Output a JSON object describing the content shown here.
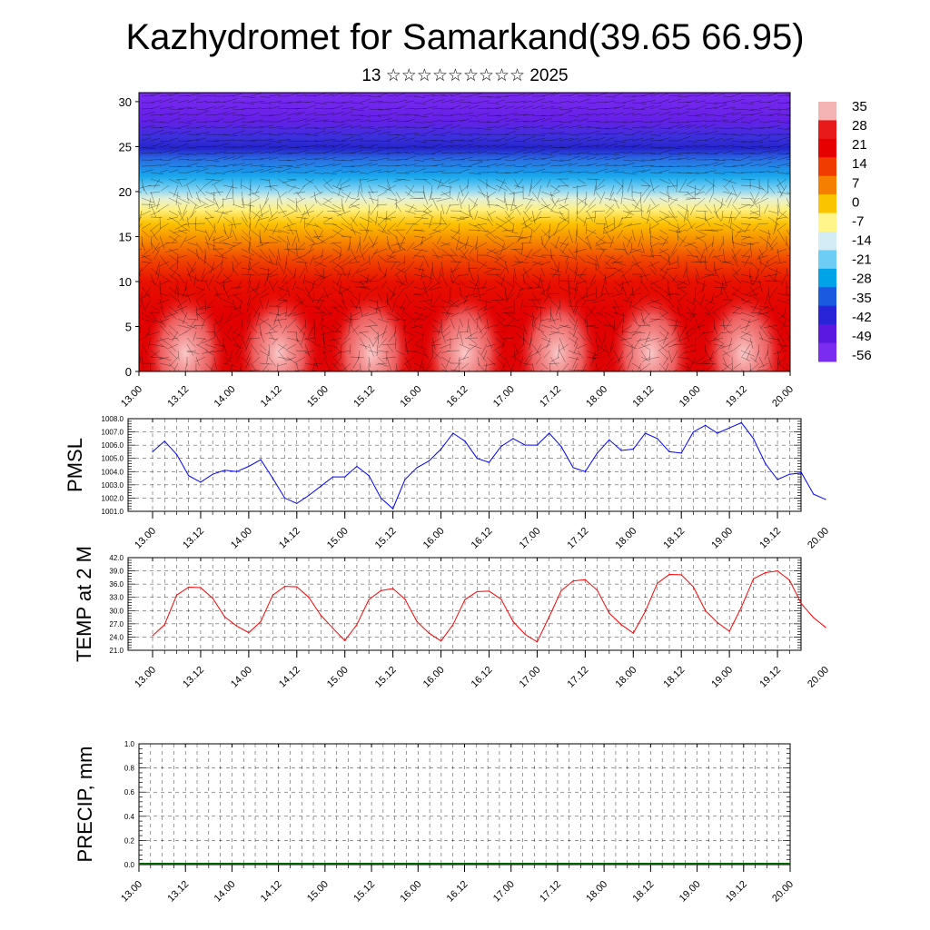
{
  "header": {
    "title": "Kazhydromet for Samarkand(39.65 66.95)",
    "subtitle": "13 ☆☆☆☆☆☆☆☆☆ 2025"
  },
  "chart_data": [
    {
      "type": "heatmap",
      "title": "",
      "y_ticks": [
        "0",
        "5",
        "10",
        "15",
        "20",
        "25",
        "30"
      ],
      "ylim": [
        0,
        31
      ],
      "x_ticks": [
        "13.00",
        "13.12",
        "14.00",
        "14.12",
        "15.00",
        "15.12",
        "16.00",
        "16.12",
        "17.00",
        "17.12",
        "18.00",
        "18.12",
        "19.00",
        "19.12",
        "20.00"
      ],
      "colorbar_labels": [
        "35",
        "28",
        "21",
        "14",
        "7",
        "0",
        "-7",
        "-14",
        "-21",
        "-28",
        "-35",
        "-42",
        "-49",
        "-56"
      ],
      "colorbar_colors": [
        "#f4b4b4",
        "#e81a1a",
        "#e60000",
        "#f03c00",
        "#f57f00",
        "#fbc400",
        "#fff58a",
        "#d4ecf5",
        "#6dcdf5",
        "#00a3e8",
        "#1a5ae0",
        "#2a24d8",
        "#5a18e0",
        "#7a2df0"
      ]
    },
    {
      "type": "line",
      "ylabel": "PMSL",
      "ylim": [
        1001.0,
        1008.0
      ],
      "y_ticks": [
        "1001.0",
        "1002.0",
        "1003.0",
        "1004.0",
        "1005.0",
        "1006.0",
        "1007.0",
        "1008.0"
      ],
      "x_ticks": [
        "13.00",
        "13.12",
        "14.00",
        "14.12",
        "15.00",
        "15.12",
        "16.00",
        "16.12",
        "17.00",
        "17.12",
        "18.00",
        "18.12",
        "19.00",
        "19.12",
        "20.00"
      ],
      "color": "#0000ff",
      "values": [
        1005.5,
        1006.3,
        1005.3,
        1003.7,
        1003.2,
        1003.8,
        1004.1,
        1004.0,
        1004.4,
        1004.9,
        1003.5,
        1002.0,
        1001.6,
        1002.2,
        1002.9,
        1003.6,
        1003.6,
        1004.4,
        1003.7,
        1002.0,
        1001.2,
        1003.4,
        1004.3,
        1004.8,
        1005.7,
        1006.9,
        1006.3,
        1005.0,
        1004.7,
        1005.9,
        1006.5,
        1006.0,
        1006.0,
        1006.9,
        1005.9,
        1004.3,
        1004.0,
        1005.4,
        1006.4,
        1005.6,
        1005.7,
        1006.9,
        1006.5,
        1005.5,
        1005.4,
        1007.0,
        1007.5,
        1006.9,
        1007.3,
        1007.7,
        1006.5,
        1004.6,
        1003.4,
        1003.8,
        1003.9,
        1002.3,
        1001.9
      ]
    },
    {
      "type": "line",
      "ylabel": "TEMP at 2 M",
      "ylim": [
        21.0,
        42.0
      ],
      "y_ticks": [
        "21.0",
        "24.0",
        "27.0",
        "30.0",
        "33.0",
        "36.0",
        "39.0",
        "42.0"
      ],
      "x_ticks": [
        "13.00",
        "13.12",
        "14.00",
        "14.12",
        "15.00",
        "15.12",
        "16.00",
        "16.12",
        "17.00",
        "17.12",
        "18.00",
        "18.12",
        "19.00",
        "19.12",
        "20.00"
      ],
      "color": "#ff0000",
      "values": [
        24.3,
        26.8,
        33.5,
        35.3,
        35.2,
        32.8,
        28.6,
        26.5,
        25.0,
        27.5,
        33.5,
        35.5,
        35.4,
        33.0,
        28.9,
        26.0,
        23.2,
        26.8,
        32.5,
        34.5,
        35.0,
        32.6,
        27.5,
        24.9,
        23.1,
        26.8,
        32.5,
        34.3,
        34.4,
        32.6,
        27.5,
        24.6,
        22.9,
        28.6,
        34.5,
        36.7,
        37.0,
        34.6,
        29.4,
        26.8,
        24.9,
        29.8,
        36.2,
        38.2,
        38.1,
        35.4,
        30.0,
        27.3,
        25.3,
        30.8,
        37.2,
        38.6,
        39.0,
        36.9,
        31.5,
        28.4,
        26.2
      ]
    },
    {
      "type": "bar",
      "ylabel": "PRECIP, mm",
      "ylim": [
        0.0,
        1.0
      ],
      "y_ticks": [
        "0.0",
        "0.2",
        "0.4",
        "0.6",
        "0.8",
        "1.0"
      ],
      "x_ticks": [
        "13.00",
        "13.12",
        "14.00",
        "14.12",
        "15.00",
        "15.12",
        "16.00",
        "16.12",
        "17.00",
        "17.12",
        "18.00",
        "18.12",
        "19.00",
        "19.12",
        "20.00"
      ],
      "values": [
        0,
        0,
        0,
        0,
        0,
        0,
        0,
        0,
        0,
        0,
        0,
        0,
        0,
        0,
        0,
        0,
        0,
        0,
        0,
        0,
        0,
        0,
        0,
        0,
        0,
        0,
        0,
        0,
        0,
        0,
        0,
        0,
        0,
        0,
        0,
        0,
        0,
        0,
        0,
        0,
        0,
        0,
        0,
        0,
        0,
        0,
        0,
        0,
        0,
        0,
        0,
        0,
        0,
        0,
        0,
        0,
        0
      ]
    }
  ]
}
